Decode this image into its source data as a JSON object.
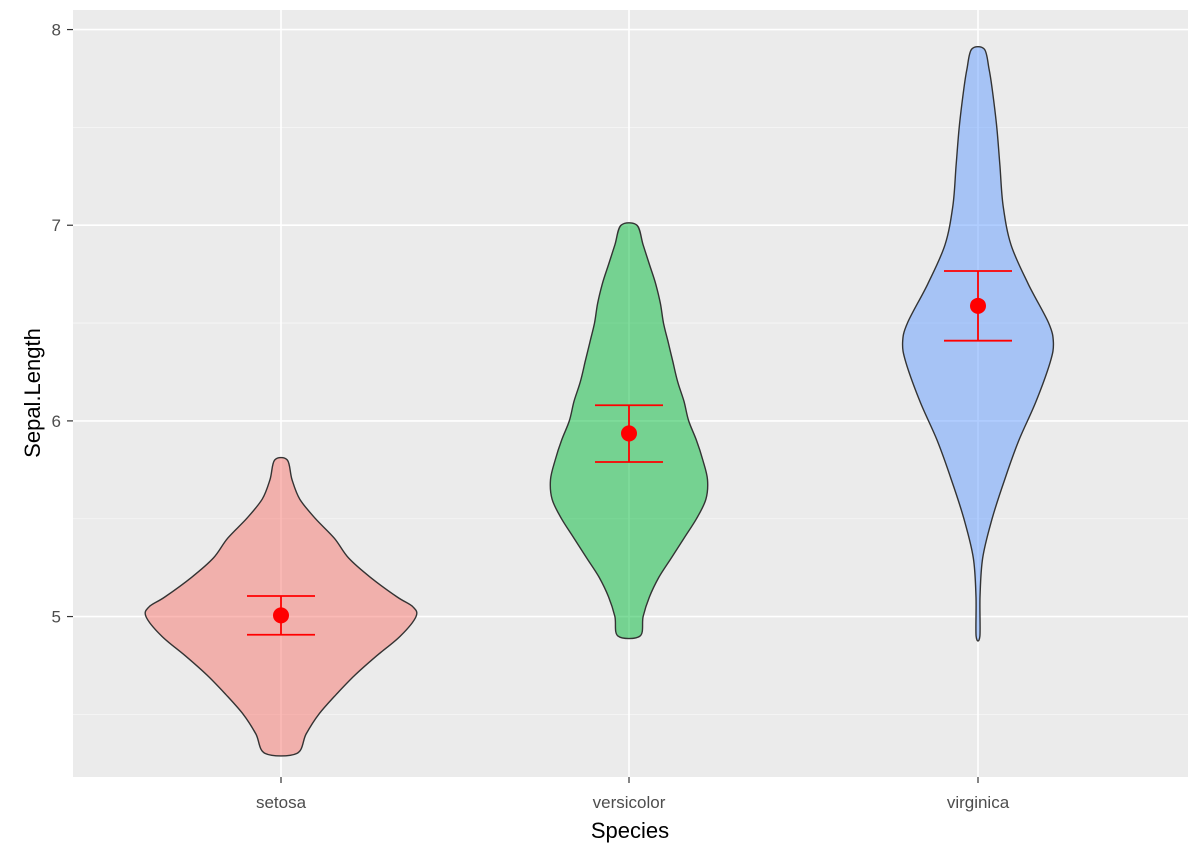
{
  "chart_data": {
    "type": "violin",
    "title": "",
    "xlabel": "Species",
    "ylabel": "Sepal.Length",
    "categories": [
      "setosa",
      "versicolor",
      "virginica"
    ],
    "ylim": [
      4.18,
      8.1
    ],
    "yticks": [
      5,
      6,
      7,
      8
    ],
    "grid": true,
    "legend": "none",
    "colors": {
      "panel": "#ebebeb",
      "grid": "#ffffff",
      "setosa": "#f8766d",
      "versicolor": "#00ba38",
      "virginica": "#619cff",
      "violin_outline": "#333333",
      "summary": "#ff0000"
    },
    "fill_opacity": 0.5,
    "violins": [
      {
        "category": "setosa",
        "min": 4.3,
        "max": 5.8,
        "halfwidth_profile": [
          [
            4.3,
            0.1
          ],
          [
            4.4,
            0.16
          ],
          [
            4.5,
            0.24
          ],
          [
            4.6,
            0.35
          ],
          [
            4.7,
            0.47
          ],
          [
            4.8,
            0.61
          ],
          [
            4.9,
            0.76
          ],
          [
            5.0,
            0.86
          ],
          [
            5.05,
            0.84
          ],
          [
            5.1,
            0.74
          ],
          [
            5.2,
            0.57
          ],
          [
            5.3,
            0.43
          ],
          [
            5.4,
            0.34
          ],
          [
            5.5,
            0.22
          ],
          [
            5.6,
            0.12
          ],
          [
            5.7,
            0.07
          ],
          [
            5.8,
            0.04
          ]
        ]
      },
      {
        "category": "versicolor",
        "min": 4.9,
        "max": 7.0,
        "halfwidth_profile": [
          [
            4.9,
            0.07
          ],
          [
            5.0,
            0.09
          ],
          [
            5.1,
            0.13
          ],
          [
            5.2,
            0.19
          ],
          [
            5.3,
            0.27
          ],
          [
            5.4,
            0.35
          ],
          [
            5.5,
            0.43
          ],
          [
            5.6,
            0.49
          ],
          [
            5.7,
            0.5
          ],
          [
            5.8,
            0.47
          ],
          [
            5.9,
            0.43
          ],
          [
            6.0,
            0.38
          ],
          [
            6.1,
            0.35
          ],
          [
            6.2,
            0.31
          ],
          [
            6.3,
            0.28
          ],
          [
            6.4,
            0.25
          ],
          [
            6.5,
            0.22
          ],
          [
            6.6,
            0.2
          ],
          [
            6.7,
            0.17
          ],
          [
            6.8,
            0.13
          ],
          [
            6.9,
            0.09
          ],
          [
            7.0,
            0.05
          ]
        ]
      },
      {
        "category": "virginica",
        "min": 4.9,
        "max": 7.9,
        "halfwidth_profile": [
          [
            4.9,
            0.012
          ],
          [
            5.1,
            0.013
          ],
          [
            5.3,
            0.03
          ],
          [
            5.5,
            0.09
          ],
          [
            5.7,
            0.17
          ],
          [
            5.9,
            0.26
          ],
          [
            6.1,
            0.37
          ],
          [
            6.3,
            0.46
          ],
          [
            6.4,
            0.48
          ],
          [
            6.5,
            0.45
          ],
          [
            6.7,
            0.32
          ],
          [
            6.9,
            0.21
          ],
          [
            7.1,
            0.16
          ],
          [
            7.3,
            0.14
          ],
          [
            7.5,
            0.12
          ],
          [
            7.7,
            0.09
          ],
          [
            7.8,
            0.07
          ],
          [
            7.9,
            0.04
          ]
        ]
      }
    ],
    "summary": [
      {
        "category": "setosa",
        "mean": 5.006,
        "lower": 4.907,
        "upper": 5.105
      },
      {
        "category": "versicolor",
        "mean": 5.936,
        "lower": 5.79,
        "upper": 6.08
      },
      {
        "category": "virginica",
        "mean": 6.588,
        "lower": 6.41,
        "upper": 6.766
      }
    ]
  }
}
